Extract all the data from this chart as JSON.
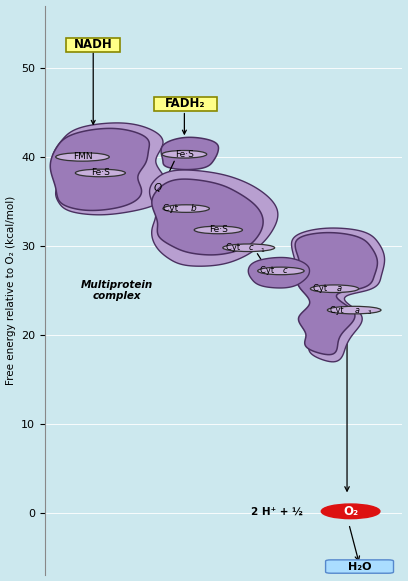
{
  "background_color": "#cce8ee",
  "plot_bg_color": "#cce8ee",
  "blob_fill": "#9b7bb8",
  "blob_fill_light": "#b89fd0",
  "blob_edge": "#4a3060",
  "ellipse_fill": "#c8b0dc",
  "ellipse_edge": "#333333",
  "ylabel": "Free energy relative to O₂ (kcal/mol)",
  "ylim": [
    -7,
    57
  ],
  "xlim": [
    0,
    10
  ],
  "yticks": [
    0,
    10,
    20,
    30,
    40,
    50
  ],
  "nadh_label": "NADH",
  "fadh2_label": "FADH₂",
  "multiprotein_label": "Multiprotein\ncomplex"
}
